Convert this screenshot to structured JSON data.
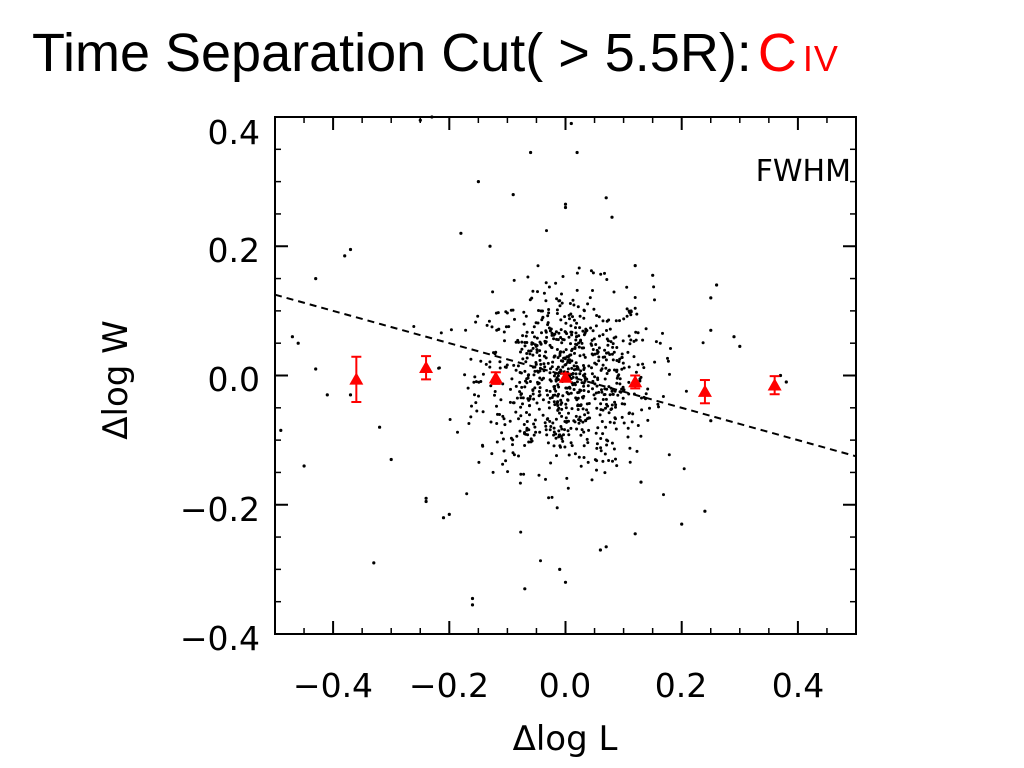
{
  "title": {
    "main": "Time Separation Cut( > 5.5R):",
    "species_element": "C",
    "species_ion": "IV"
  },
  "colors": {
    "points": "#000000",
    "binned_markers": "#ff0000",
    "fit_line": "#000000",
    "title_species": "#ff0000"
  },
  "chart_data": {
    "type": "scatter",
    "xlabel": "Δlog L",
    "ylabel": "Δlog W",
    "annotation": "FWHM",
    "xlim": [
      -0.5,
      0.5
    ],
    "ylim": [
      -0.4,
      0.4
    ],
    "x_ticks": [
      -0.4,
      -0.2,
      0.0,
      0.2,
      0.4
    ],
    "x_tick_labels": [
      "−0.4",
      "−0.2",
      "0.0",
      "0.2",
      "0.4"
    ],
    "y_ticks": [
      -0.4,
      -0.2,
      0.0,
      0.2,
      0.4
    ],
    "y_tick_labels": [
      "−0.4",
      "−0.2",
      "0.0",
      "0.2",
      "0.4"
    ],
    "grid": false,
    "series": [
      {
        "kind": "scatter-dots",
        "marker": "dot",
        "color": "#000000",
        "description_count": 900,
        "points": [
          [
            -0.37,
            0.195
          ],
          [
            -0.38,
            0.185
          ],
          [
            -0.43,
            0.15
          ],
          [
            -0.47,
            0.06
          ],
          [
            -0.46,
            0.05
          ],
          [
            -0.49,
            -0.085
          ],
          [
            -0.45,
            -0.14
          ],
          [
            -0.33,
            -0.29
          ],
          [
            -0.32,
            -0.08
          ],
          [
            -0.23,
            0.4
          ],
          [
            -0.25,
            0.395
          ],
          [
            -0.18,
            0.22
          ],
          [
            -0.15,
            0.3
          ],
          [
            -0.13,
            0.2
          ],
          [
            -0.09,
            0.28
          ],
          [
            -0.06,
            0.345
          ],
          [
            0.0,
            0.265
          ],
          [
            0.0,
            0.26
          ],
          [
            0.01,
            0.39
          ],
          [
            0.02,
            0.345
          ],
          [
            0.07,
            0.275
          ],
          [
            0.08,
            0.245
          ],
          [
            0.12,
            0.17
          ],
          [
            0.15,
            0.155
          ],
          [
            0.26,
            0.14
          ],
          [
            0.25,
            0.12
          ],
          [
            0.25,
            0.07
          ],
          [
            0.29,
            0.06
          ],
          [
            0.3,
            0.045
          ],
          [
            0.37,
            0.0
          ],
          [
            0.38,
            -0.01
          ],
          [
            0.25,
            -0.07
          ],
          [
            0.24,
            -0.21
          ],
          [
            0.2,
            -0.23
          ],
          [
            0.13,
            -0.165
          ],
          [
            0.12,
            -0.245
          ],
          [
            0.07,
            -0.265
          ],
          [
            0.06,
            -0.27
          ],
          [
            -0.01,
            -0.3
          ],
          [
            0.0,
            -0.32
          ],
          [
            -0.07,
            -0.33
          ],
          [
            -0.16,
            -0.355
          ],
          [
            -0.16,
            -0.345
          ],
          [
            -0.21,
            -0.22
          ],
          [
            -0.2,
            -0.215
          ],
          [
            -0.24,
            -0.195
          ],
          [
            -0.24,
            -0.19
          ],
          [
            -0.3,
            -0.13
          ],
          [
            -0.37,
            -0.03
          ],
          [
            -0.41,
            -0.03
          ],
          [
            -0.43,
            0.01
          ]
        ]
      },
      {
        "name": "",
        "kind": "binned-means",
        "marker": "triangle",
        "color": "#ff0000",
        "x": [
          -0.36,
          -0.24,
          -0.12,
          0.0,
          0.12,
          0.24,
          0.36
        ],
        "y": [
          -0.006,
          0.012,
          -0.004,
          -0.003,
          -0.01,
          -0.025,
          -0.015
        ],
        "yerr": [
          0.035,
          0.018,
          0.009,
          0.006,
          0.01,
          0.018,
          0.014
        ]
      },
      {
        "name": "",
        "kind": "fit-line",
        "style": "dashed",
        "color": "#000000",
        "x": [
          -0.5,
          0.5
        ],
        "y": [
          0.125,
          -0.125
        ]
      }
    ]
  }
}
